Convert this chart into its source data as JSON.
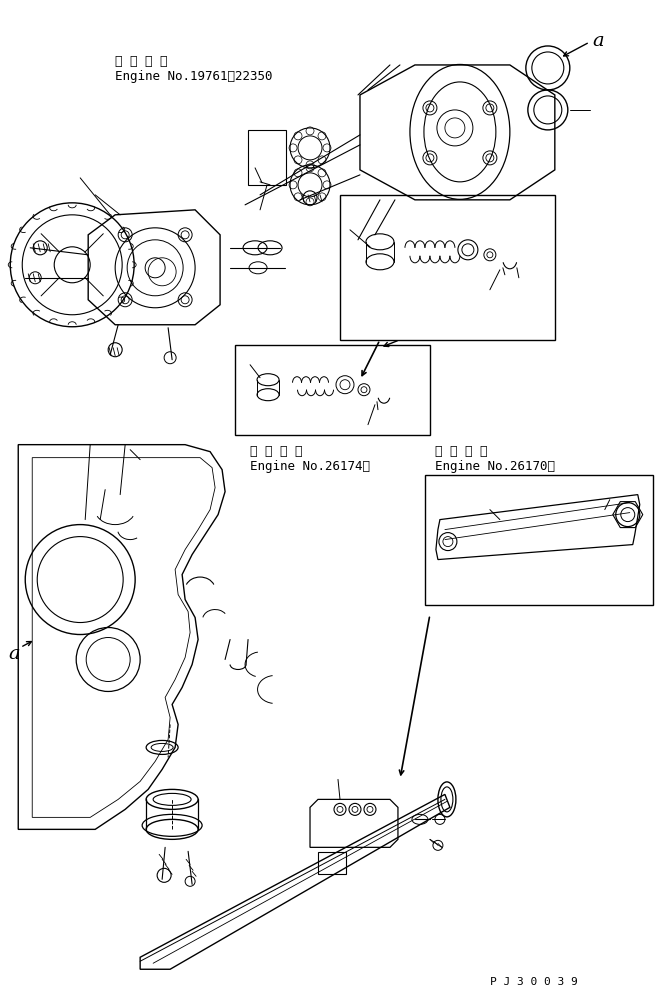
{
  "background_color": "#ffffff",
  "line_color": "#000000",
  "text_color": "#000000",
  "label1_line1": "適 用 号 機",
  "label1_line2": "Engine No.19761～22350",
  "label2_line1": "適 用 号 機",
  "label2_line2": "Engine No.26174～",
  "label3_line1": "適 用 号 機",
  "label3_line2": "Engine No.26170～",
  "footer_text": "P J 3 0 0 3 9",
  "label_a": "a",
  "font_size_label": 9,
  "font_size_footer": 8,
  "font_size_a": 13
}
